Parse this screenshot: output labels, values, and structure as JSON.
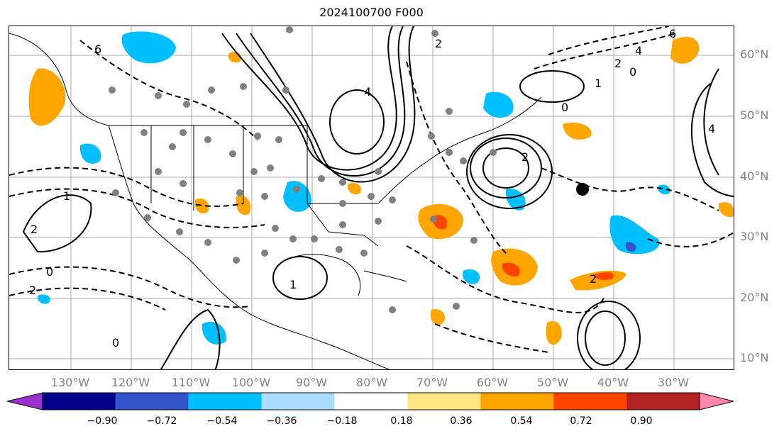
{
  "title": "2024100700 F000",
  "lat_labels": [
    "60°N",
    "50°N",
    "40°N",
    "30°N",
    "20°N",
    "10°N"
  ],
  "lon_labels": [
    "130°W",
    "120°W",
    "110°W",
    "100°W",
    "90°W",
    "80°W",
    "70°W",
    "60°W",
    "50°W",
    "40°W",
    "30°W"
  ],
  "colorbar": {
    "ticks": [
      "−0.90",
      "−0.72",
      "−0.54",
      "−0.36",
      "−0.18",
      "0.18",
      "0.36",
      "0.54",
      "0.72",
      "0.90"
    ],
    "colors": [
      "#9933cc",
      "#00008b",
      "#3355cc",
      "#00bfff",
      "#aaddff",
      "#ffffff",
      "#ffe680",
      "#ffa500",
      "#ff4500",
      "#b22222",
      "#ff88aa"
    ]
  },
  "contour_labels": [
    "6",
    "4",
    "2",
    "0",
    "1",
    "2",
    "0",
    "2",
    "1",
    "1",
    "0",
    "2",
    "6",
    "4",
    "2",
    "0",
    "2",
    "4"
  ],
  "colors": {
    "positive": "#ffa500",
    "positive_strong": "#ff4500",
    "negative": "#00bfff",
    "negative_strong": "#3355cc",
    "stations": "#808080"
  }
}
